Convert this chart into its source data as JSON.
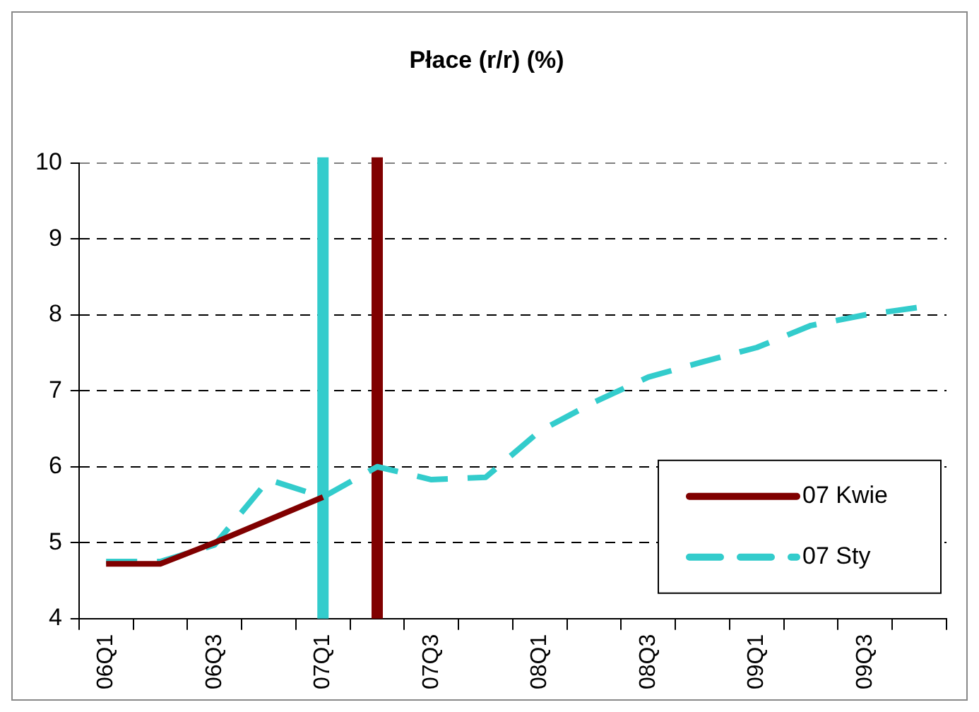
{
  "chart_data": {
    "type": "line",
    "title": "Płace (r/r) (%)",
    "categories": [
      "06Q1",
      null,
      "06Q3",
      null,
      "07Q1",
      null,
      "07Q3",
      null,
      "08Q1",
      null,
      "08Q3",
      null,
      "09Q1",
      null,
      "09Q3",
      null
    ],
    "series": [
      {
        "name": "07 Kwie",
        "color": "#800000",
        "line_style": "solid",
        "values": [
          4.72,
          4.72,
          5.0,
          5.3,
          5.6,
          null,
          null,
          null,
          null,
          null,
          null,
          null,
          null,
          null,
          null,
          null
        ]
      },
      {
        "name": "07 Sty",
        "color": "#33cccc",
        "line_style": "dashed",
        "values": [
          4.75,
          4.75,
          4.97,
          5.83,
          5.6,
          6.0,
          5.83,
          5.86,
          6.47,
          6.85,
          7.18,
          7.38,
          7.57,
          7.86,
          8.0,
          8.1
        ]
      }
    ],
    "ylim": [
      4,
      10
    ],
    "yticks": [
      4,
      5,
      6,
      7,
      8,
      9,
      10
    ],
    "ref_lines": [
      {
        "axis": "x",
        "value": "07Q1",
        "color": "#33cccc"
      }
    ],
    "grid": "y",
    "legend": "bottom right",
    "marker": "none"
  }
}
